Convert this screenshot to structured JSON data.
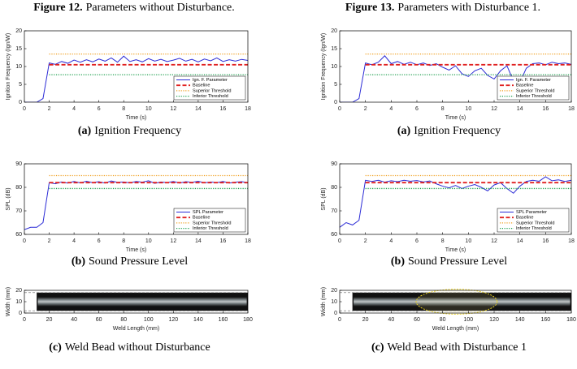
{
  "figures": [
    {
      "label": "Figure 12.",
      "title": "Parameters without Disturbance."
    },
    {
      "label": "Figure 13.",
      "title": "Parameters with Disturbance 1."
    }
  ],
  "chart_data": [
    {
      "type": "line",
      "caption_label": "(a)",
      "caption": "Ignition Frequency",
      "xlabel": "Time (s)",
      "ylabel": "Ignition Frequency (Ign/W)",
      "xlim": [
        0,
        18
      ],
      "xticks": [
        0,
        2,
        4,
        6,
        8,
        10,
        12,
        14,
        16,
        18
      ],
      "ylim": [
        0,
        20
      ],
      "yticks": [
        0,
        5,
        10,
        15,
        20
      ],
      "legend": "lower right",
      "x": [
        0,
        0.5,
        1,
        1.5,
        2,
        2.5,
        3,
        3.5,
        4,
        4.5,
        5,
        5.5,
        6,
        6.5,
        7,
        7.5,
        8,
        8.5,
        9,
        9.5,
        10,
        10.5,
        11,
        11.5,
        12,
        12.5,
        13,
        13.5,
        14,
        14.5,
        15,
        15.5,
        16,
        16.5,
        17,
        17.5,
        18
      ],
      "series": [
        {
          "name": "Ign. F. Parameter",
          "color": "#2b2bd6",
          "line_style": "solid",
          "values": [
            0,
            0,
            0,
            1,
            11,
            10.6,
            11.4,
            10.9,
            11.8,
            11.2,
            11.9,
            11.3,
            12.1,
            11.5,
            12.4,
            11.2,
            12.9,
            11.4,
            11.9,
            11.3,
            12.2,
            11.5,
            12.0,
            11.4,
            11.8,
            12.3,
            11.5,
            12.0,
            11.3,
            12.1,
            11.6,
            12.4,
            11.4,
            11.9,
            11.5,
            12.0,
            11.7
          ]
        },
        {
          "name": "Baseline",
          "color": "#e02020",
          "line_style": "dashed",
          "values": [
            null,
            null,
            null,
            null,
            10.5,
            10.5,
            10.5,
            10.5,
            10.5,
            10.5,
            10.5,
            10.5,
            10.5,
            10.5,
            10.5,
            10.5,
            10.5,
            10.5,
            10.5,
            10.5,
            10.5,
            10.5,
            10.5,
            10.5,
            10.5,
            10.5,
            10.5,
            10.5,
            10.5,
            10.5,
            10.5,
            10.5,
            10.5,
            10.5,
            10.5,
            10.5,
            10.5
          ]
        },
        {
          "name": "Superior Threshold",
          "color": "#f0a020",
          "line_style": "dotted",
          "values": [
            null,
            null,
            null,
            null,
            13.5,
            13.5,
            13.5,
            13.5,
            13.5,
            13.5,
            13.5,
            13.5,
            13.5,
            13.5,
            13.5,
            13.5,
            13.5,
            13.5,
            13.5,
            13.5,
            13.5,
            13.5,
            13.5,
            13.5,
            13.5,
            13.5,
            13.5,
            13.5,
            13.5,
            13.5,
            13.5,
            13.5,
            13.5,
            13.5,
            13.5,
            13.5,
            13.5
          ]
        },
        {
          "name": "Inferior Threshold",
          "color": "#20a050",
          "line_style": "dotted",
          "values": [
            null,
            null,
            null,
            null,
            7.7,
            7.7,
            7.7,
            7.7,
            7.7,
            7.7,
            7.7,
            7.7,
            7.7,
            7.7,
            7.7,
            7.7,
            7.7,
            7.7,
            7.7,
            7.7,
            7.7,
            7.7,
            7.7,
            7.7,
            7.7,
            7.7,
            7.7,
            7.7,
            7.7,
            7.7,
            7.7,
            7.7,
            7.7,
            7.7,
            7.7,
            7.7,
            7.7
          ]
        }
      ]
    },
    {
      "type": "line",
      "caption_label": "(b)",
      "caption": "Sound Pressure Level",
      "xlabel": "Time (s)",
      "ylabel": "SPL (dB)",
      "xlim": [
        0,
        18
      ],
      "xticks": [
        0,
        2,
        4,
        6,
        8,
        10,
        12,
        14,
        16,
        18
      ],
      "ylim": [
        60,
        90
      ],
      "yticks": [
        60,
        70,
        80,
        90
      ],
      "legend": "lower right",
      "x": [
        0,
        0.5,
        1,
        1.5,
        2,
        2.5,
        3,
        3.5,
        4,
        4.5,
        5,
        5.5,
        6,
        6.5,
        7,
        7.5,
        8,
        8.5,
        9,
        9.5,
        10,
        10.5,
        11,
        11.5,
        12,
        12.5,
        13,
        13.5,
        14,
        14.5,
        15,
        15.5,
        16,
        16.5,
        17,
        17.5,
        18
      ],
      "series": [
        {
          "name": "SPL Parameter",
          "color": "#2b2bd6",
          "line_style": "solid",
          "values": [
            62,
            63,
            63,
            65,
            82,
            81.5,
            82.3,
            81.8,
            82.5,
            81.9,
            82.6,
            82,
            82.4,
            81.8,
            82.7,
            82.1,
            82.3,
            81.9,
            82.5,
            82.2,
            82.8,
            81.7,
            82.3,
            82,
            82.5,
            81.8,
            82.4,
            82.1,
            82.6,
            81.9,
            82.3,
            82,
            82.5,
            81.8,
            82.2,
            82.4,
            82
          ]
        },
        {
          "name": "Baseline",
          "color": "#e02020",
          "line_style": "dashed",
          "values": [
            null,
            null,
            null,
            null,
            82,
            82,
            82,
            82,
            82,
            82,
            82,
            82,
            82,
            82,
            82,
            82,
            82,
            82,
            82,
            82,
            82,
            82,
            82,
            82,
            82,
            82,
            82,
            82,
            82,
            82,
            82,
            82,
            82,
            82,
            82,
            82,
            82
          ]
        },
        {
          "name": "Superior Threshold",
          "color": "#f0a020",
          "line_style": "dotted",
          "values": [
            null,
            null,
            null,
            null,
            85,
            85,
            85,
            85,
            85,
            85,
            85,
            85,
            85,
            85,
            85,
            85,
            85,
            85,
            85,
            85,
            85,
            85,
            85,
            85,
            85,
            85,
            85,
            85,
            85,
            85,
            85,
            85,
            85,
            85,
            85,
            85,
            85
          ]
        },
        {
          "name": "Inferior Threshold",
          "color": "#20a050",
          "line_style": "dotted",
          "values": [
            null,
            null,
            null,
            null,
            79.5,
            79.5,
            79.5,
            79.5,
            79.5,
            79.5,
            79.5,
            79.5,
            79.5,
            79.5,
            79.5,
            79.5,
            79.5,
            79.5,
            79.5,
            79.5,
            79.5,
            79.5,
            79.5,
            79.5,
            79.5,
            79.5,
            79.5,
            79.5,
            79.5,
            79.5,
            79.5,
            79.5,
            79.5,
            79.5,
            79.5,
            79.5,
            79.5
          ]
        }
      ]
    },
    {
      "type": "image",
      "caption_label": "(c)",
      "caption": "Weld Bead without Disturbance",
      "xlabel": "Weld Length (mm)",
      "ylabel": "Width (mm)",
      "xlim": [
        0,
        180
      ],
      "xticks": [
        0,
        20,
        40,
        60,
        80,
        100,
        120,
        140,
        160,
        180
      ],
      "ylim": [
        0,
        20
      ],
      "yticks": [
        0,
        10,
        20
      ]
    },
    {
      "type": "line",
      "caption_label": "(a)",
      "caption": "Ignition Frequency",
      "xlabel": "Time (s)",
      "ylabel": "Ignition Frequency (Ign/W)",
      "xlim": [
        0,
        18
      ],
      "xticks": [
        0,
        2,
        4,
        6,
        8,
        10,
        12,
        14,
        16,
        18
      ],
      "ylim": [
        0,
        20
      ],
      "yticks": [
        0,
        5,
        10,
        15,
        20
      ],
      "legend": "lower right",
      "x": [
        0,
        0.5,
        1,
        1.5,
        2,
        2.5,
        3,
        3.5,
        4,
        4.5,
        5,
        5.5,
        6,
        6.5,
        7,
        7.5,
        8,
        8.5,
        9,
        9.5,
        10,
        10.5,
        11,
        11.5,
        12,
        12.5,
        13,
        13.5,
        14,
        14.5,
        15,
        15.5,
        16,
        16.5,
        17,
        17.5,
        18
      ],
      "series": [
        {
          "name": "Ign. F. Parameter",
          "color": "#2b2bd6",
          "line_style": "solid",
          "values": [
            0,
            0,
            0,
            1,
            11,
            10.5,
            11.2,
            13,
            10.8,
            11.4,
            10.6,
            11.2,
            10.5,
            11,
            10.3,
            10.8,
            9.8,
            9,
            10.2,
            8,
            7.2,
            8.8,
            9.5,
            7.5,
            6.5,
            8.8,
            10.2,
            6,
            5.5,
            9.5,
            10.8,
            11,
            10.5,
            11.2,
            10.8,
            11,
            10.6
          ]
        },
        {
          "name": "Baseline",
          "color": "#e02020",
          "line_style": "dashed",
          "values": [
            null,
            null,
            null,
            null,
            10.5,
            10.5,
            10.5,
            10.5,
            10.5,
            10.5,
            10.5,
            10.5,
            10.5,
            10.5,
            10.5,
            10.5,
            10.5,
            10.5,
            10.5,
            10.5,
            10.5,
            10.5,
            10.5,
            10.5,
            10.5,
            10.5,
            10.5,
            10.5,
            10.5,
            10.5,
            10.5,
            10.5,
            10.5,
            10.5,
            10.5,
            10.5,
            10.5
          ]
        },
        {
          "name": "Superior Threshold",
          "color": "#f0a020",
          "line_style": "dotted",
          "values": [
            null,
            null,
            null,
            null,
            13.5,
            13.5,
            13.5,
            13.5,
            13.5,
            13.5,
            13.5,
            13.5,
            13.5,
            13.5,
            13.5,
            13.5,
            13.5,
            13.5,
            13.5,
            13.5,
            13.5,
            13.5,
            13.5,
            13.5,
            13.5,
            13.5,
            13.5,
            13.5,
            13.5,
            13.5,
            13.5,
            13.5,
            13.5,
            13.5,
            13.5,
            13.5,
            13.5
          ]
        },
        {
          "name": "Inferior Threshold",
          "color": "#20a050",
          "line_style": "dotted",
          "values": [
            null,
            null,
            null,
            null,
            7.7,
            7.7,
            7.7,
            7.7,
            7.7,
            7.7,
            7.7,
            7.7,
            7.7,
            7.7,
            7.7,
            7.7,
            7.7,
            7.7,
            7.7,
            7.7,
            7.7,
            7.7,
            7.7,
            7.7,
            7.7,
            7.7,
            7.7,
            7.7,
            7.7,
            7.7,
            7.7,
            7.7,
            7.7,
            7.7,
            7.7,
            7.7,
            7.7
          ]
        }
      ]
    },
    {
      "type": "line",
      "caption_label": "(b)",
      "caption": "Sound Pressure Level",
      "xlabel": "Time (s)",
      "ylabel": "SPL (dB)",
      "xlim": [
        0,
        18
      ],
      "xticks": [
        0,
        2,
        4,
        6,
        8,
        10,
        12,
        14,
        16,
        18
      ],
      "ylim": [
        60,
        90
      ],
      "yticks": [
        60,
        70,
        80,
        90
      ],
      "legend": "lower right",
      "x": [
        0,
        0.5,
        1,
        1.5,
        2,
        2.5,
        3,
        3.5,
        4,
        4.5,
        5,
        5.5,
        6,
        6.5,
        7,
        7.5,
        8,
        8.5,
        9,
        9.5,
        10,
        10.5,
        11,
        11.5,
        12,
        12.5,
        13,
        13.5,
        14,
        14.5,
        15,
        15.5,
        16,
        16.5,
        17,
        17.5,
        18
      ],
      "series": [
        {
          "name": "SPL Parameter",
          "color": "#2b2bd6",
          "line_style": "solid",
          "values": [
            63,
            65,
            64,
            66,
            83,
            82.5,
            83,
            82.2,
            82.8,
            82.4,
            83,
            82.6,
            82.9,
            82.3,
            82.7,
            81.5,
            80.5,
            79.8,
            80.8,
            79.5,
            80.5,
            81.2,
            80,
            78.5,
            81,
            82,
            79.5,
            77.5,
            80.5,
            82.5,
            83,
            82.6,
            84.5,
            82.8,
            83.2,
            82.5,
            83
          ]
        },
        {
          "name": "Baseline",
          "color": "#e02020",
          "line_style": "dashed",
          "values": [
            null,
            null,
            null,
            null,
            82,
            82,
            82,
            82,
            82,
            82,
            82,
            82,
            82,
            82,
            82,
            82,
            82,
            82,
            82,
            82,
            82,
            82,
            82,
            82,
            82,
            82,
            82,
            82,
            82,
            82,
            82,
            82,
            82,
            82,
            82,
            82,
            82
          ]
        },
        {
          "name": "Superior Threshold",
          "color": "#f0a020",
          "line_style": "dotted",
          "values": [
            null,
            null,
            null,
            null,
            85,
            85,
            85,
            85,
            85,
            85,
            85,
            85,
            85,
            85,
            85,
            85,
            85,
            85,
            85,
            85,
            85,
            85,
            85,
            85,
            85,
            85,
            85,
            85,
            85,
            85,
            85,
            85,
            85,
            85,
            85,
            85,
            85
          ]
        },
        {
          "name": "Inferior Threshold",
          "color": "#20a050",
          "line_style": "dotted",
          "values": [
            null,
            null,
            null,
            null,
            79.5,
            79.5,
            79.5,
            79.5,
            79.5,
            79.5,
            79.5,
            79.5,
            79.5,
            79.5,
            79.5,
            79.5,
            79.5,
            79.5,
            79.5,
            79.5,
            79.5,
            79.5,
            79.5,
            79.5,
            79.5,
            79.5,
            79.5,
            79.5,
            79.5,
            79.5,
            79.5,
            79.5,
            79.5,
            79.5,
            79.5,
            79.5,
            79.5
          ]
        }
      ]
    },
    {
      "type": "image",
      "caption_label": "(c)",
      "caption": "Weld Bead with Disturbance 1",
      "xlabel": "Weld Length (mm)",
      "ylabel": "Width (mm)",
      "xlim": [
        0,
        180
      ],
      "xticks": [
        0,
        20,
        40,
        60,
        80,
        100,
        120,
        140,
        160,
        180
      ],
      "ylim": [
        0,
        20
      ],
      "yticks": [
        0,
        10,
        20
      ]
    }
  ]
}
